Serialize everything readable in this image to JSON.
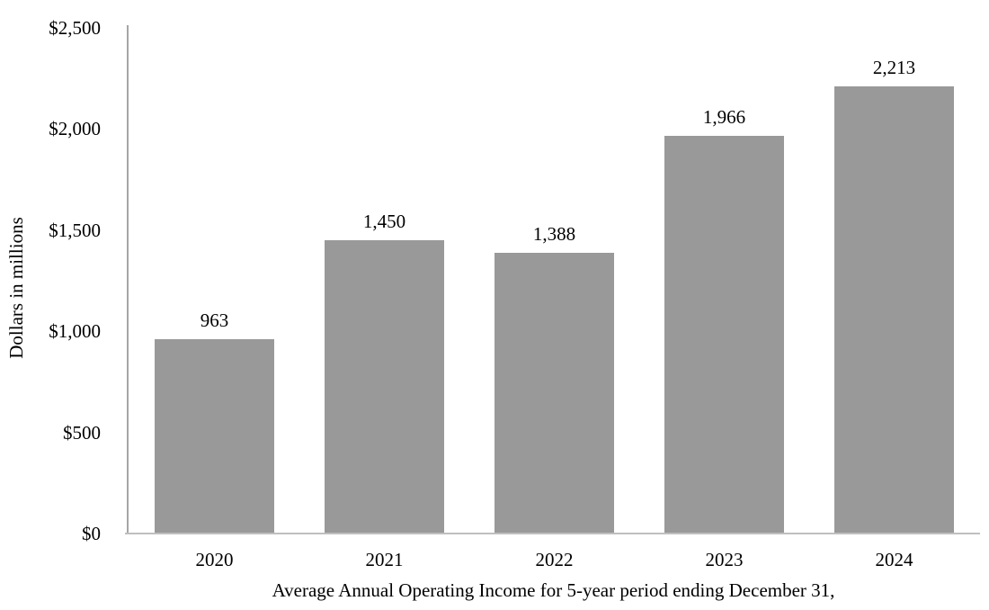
{
  "chart_data": {
    "type": "bar",
    "title": "",
    "xlabel": "Average Annual Operating Income for 5-year period ending December 31,",
    "ylabel": "Dollars in millions",
    "categories": [
      "2020",
      "2021",
      "2022",
      "2023",
      "2024"
    ],
    "values": [
      963,
      1450,
      1388,
      1966,
      2213
    ],
    "value_labels": [
      "963",
      "1,450",
      "1,388",
      "1,966",
      "2,213"
    ],
    "y_ticks": [
      {
        "value": 0,
        "label": "$0"
      },
      {
        "value": 500,
        "label": "$500"
      },
      {
        "value": 1000,
        "label": "$1,000"
      },
      {
        "value": 1500,
        "label": "$1,500"
      },
      {
        "value": 2000,
        "label": "$2,000"
      },
      {
        "value": 2500,
        "label": "$2,500"
      }
    ],
    "ylim": [
      0,
      2500
    ],
    "grid": "off",
    "legend": "none",
    "colors": {
      "bar": "#999999",
      "y_axis_line": "#a6a6a6",
      "x_axis_line": "#bfbfbf",
      "text": "#000000",
      "background": "#ffffff"
    }
  }
}
